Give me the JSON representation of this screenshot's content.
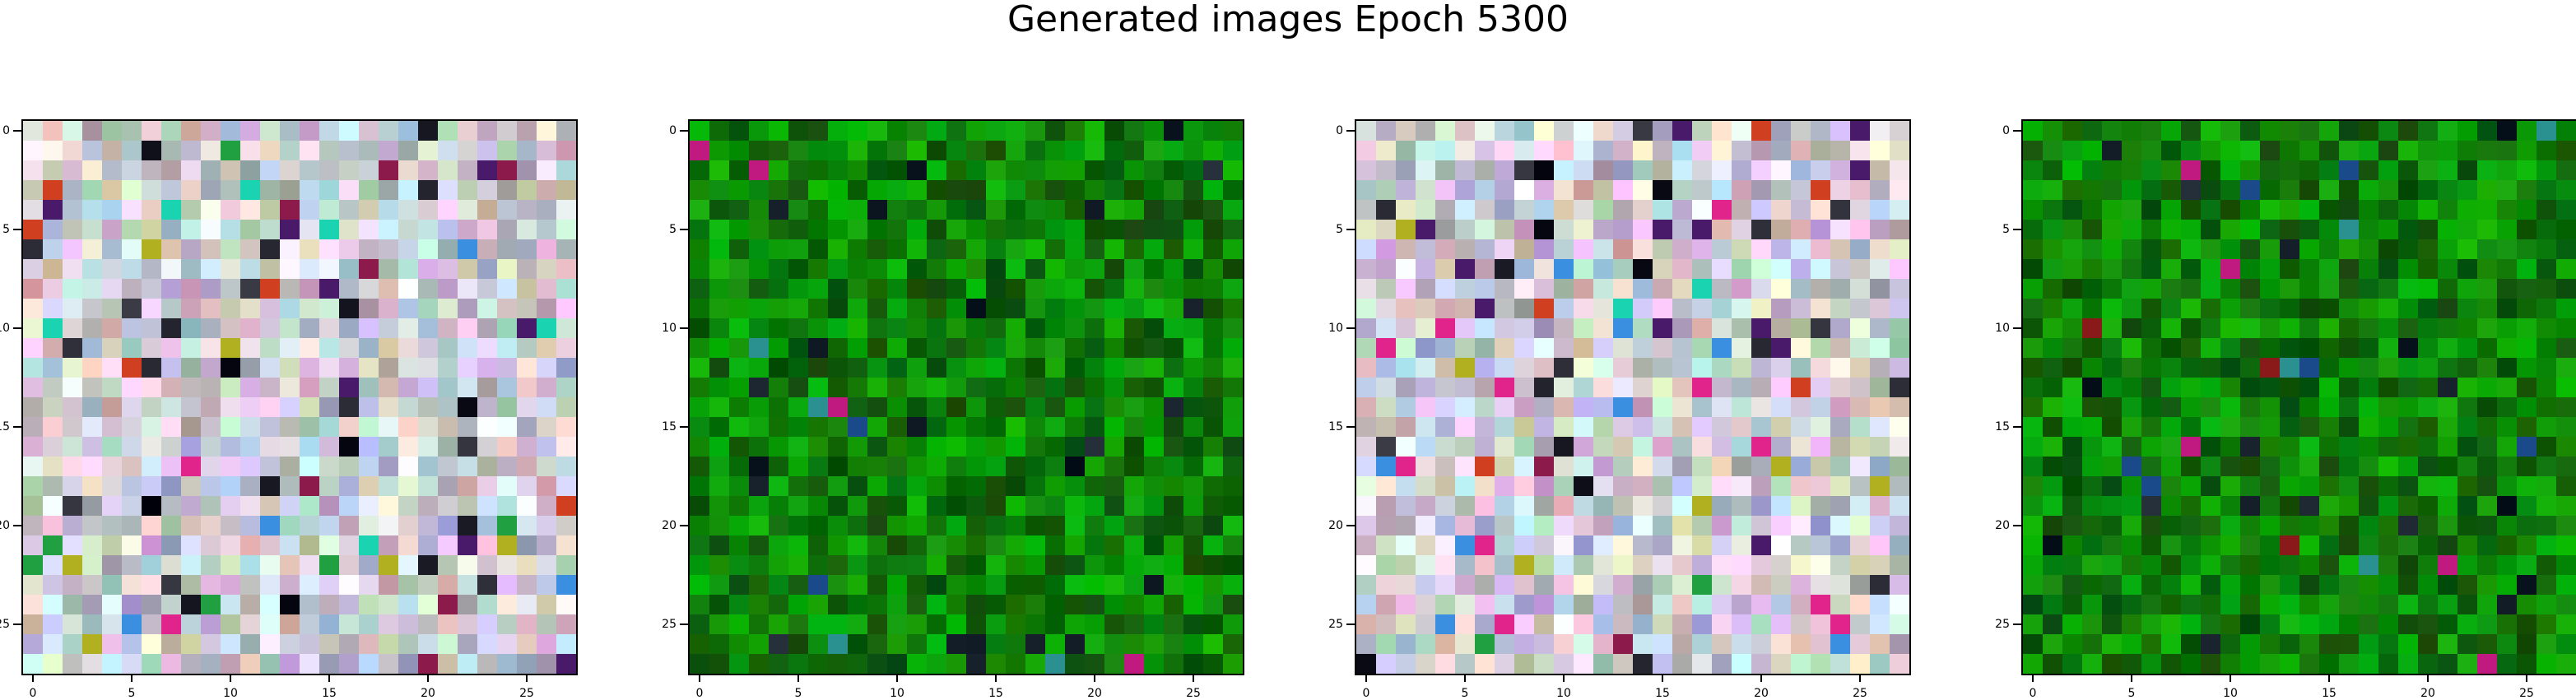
{
  "figure": {
    "title": "Generated images Epoch 5300"
  },
  "chart_data": [
    {
      "type": "heatmap",
      "title": "",
      "xlabel": "",
      "ylabel": "",
      "xlim": [
        -0.5,
        27.5
      ],
      "ylim": [
        27.5,
        -0.5
      ],
      "xticks": [
        "0",
        "5",
        "10",
        "15",
        "20",
        "25"
      ],
      "yticks": [
        "0",
        "5",
        "10",
        "15",
        "20",
        "25"
      ],
      "palette": "pastel",
      "grid": false,
      "grid_size": [
        28,
        28
      ]
    },
    {
      "type": "heatmap",
      "title": "",
      "xlabel": "",
      "ylabel": "",
      "xlim": [
        -0.5,
        27.5
      ],
      "ylim": [
        27.5,
        -0.5
      ],
      "xticks": [
        "0",
        "5",
        "10",
        "15",
        "20",
        "25"
      ],
      "yticks": [
        "0",
        "5",
        "10",
        "15",
        "20",
        "25"
      ],
      "palette": "green",
      "grid": false,
      "grid_size": [
        28,
        28
      ]
    },
    {
      "type": "heatmap",
      "title": "",
      "xlabel": "",
      "ylabel": "",
      "xlim": [
        -0.5,
        27.5
      ],
      "ylim": [
        27.5,
        -0.5
      ],
      "xticks": [
        "0",
        "5",
        "10",
        "15",
        "20",
        "25"
      ],
      "yticks": [
        "0",
        "5",
        "10",
        "15",
        "20",
        "25"
      ],
      "palette": "pastel",
      "grid": false,
      "grid_size": [
        28,
        28
      ]
    },
    {
      "type": "heatmap",
      "title": "",
      "xlabel": "",
      "ylabel": "",
      "xlim": [
        -0.5,
        27.5
      ],
      "ylim": [
        27.5,
        -0.5
      ],
      "xticks": [
        "0",
        "5",
        "10",
        "15",
        "20",
        "25"
      ],
      "yticks": [
        "0",
        "5",
        "10",
        "15",
        "20",
        "25"
      ],
      "palette": "green",
      "grid": false,
      "grid_size": [
        28,
        28
      ]
    }
  ]
}
